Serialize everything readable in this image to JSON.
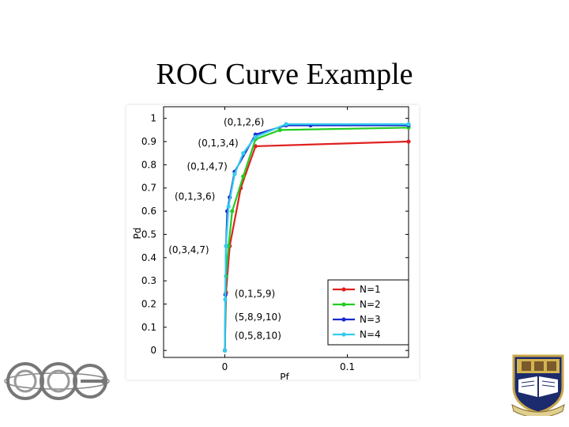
{
  "slide": {
    "title": "ROC Curve Example"
  },
  "chart_data": {
    "type": "line",
    "title": "",
    "xlabel": "Pf",
    "ylabel": "Pd",
    "xlim": [
      -0.05,
      0.15
    ],
    "ylim": [
      -0.03,
      1.05
    ],
    "xticks": [
      0,
      0.1
    ],
    "xtick_labels": [
      "0",
      "0.1"
    ],
    "yticks": [
      0,
      0.1,
      0.2,
      0.3,
      0.4,
      0.5,
      0.6,
      0.7,
      0.8,
      0.9,
      1
    ],
    "ytick_labels": [
      "0",
      "0.1",
      "0.2",
      "0.3",
      "0.4",
      "0.5",
      "0.6",
      "0.7",
      "0.8",
      "0.9",
      "1"
    ],
    "grid": false,
    "legend_position": "bottom-right",
    "series": [
      {
        "name": "N=1",
        "color": "#e02020",
        "x": [
          0,
          0.001,
          0.004,
          0.013,
          0.025,
          0.15
        ],
        "y": [
          0,
          0.25,
          0.45,
          0.7,
          0.88,
          0.9
        ]
      },
      {
        "name": "N=2",
        "color": "#22cc22",
        "x": [
          0,
          0.001,
          0.003,
          0.006,
          0.015,
          0.025,
          0.045,
          0.15
        ],
        "y": [
          0,
          0.32,
          0.45,
          0.6,
          0.75,
          0.91,
          0.95,
          0.96
        ]
      },
      {
        "name": "N=3",
        "color": "#1a2acc",
        "x": [
          0,
          0.0005,
          0.001,
          0.002,
          0.004,
          0.008,
          0.025,
          0.05,
          0.07,
          0.15
        ],
        "y": [
          0,
          0.24,
          0.45,
          0.6,
          0.66,
          0.77,
          0.93,
          0.97,
          0.97,
          0.97
        ]
      },
      {
        "name": "N=4",
        "color": "#33ccee",
        "x": [
          0,
          0.0003,
          0.001,
          0.003,
          0.008,
          0.015,
          0.025,
          0.05,
          0.15
        ],
        "y": [
          0,
          0.22,
          0.45,
          0.62,
          0.76,
          0.85,
          0.92,
          0.975,
          0.975
        ]
      }
    ],
    "annotations": [
      {
        "text": "(0,1,2,6)",
        "x": -0.001,
        "y": 0.97
      },
      {
        "text": "(0,1,3,4)",
        "x": -0.022,
        "y": 0.88
      },
      {
        "text": "(0,1,4,7)",
        "x": -0.031,
        "y": 0.78
      },
      {
        "text": "(0,1,3,6)",
        "x": -0.041,
        "y": 0.65
      },
      {
        "text": "(0,3,4,7)",
        "x": -0.046,
        "y": 0.42
      },
      {
        "text": "(0,1,5,9)",
        "x": 0.008,
        "y": 0.23
      },
      {
        "text": "(5,8,9,10)",
        "x": 0.008,
        "y": 0.13
      },
      {
        "text": "(0,5,8,10)",
        "x": 0.008,
        "y": 0.05
      }
    ]
  },
  "logos": {
    "left": "CEC-logo",
    "right": "university-crest"
  }
}
